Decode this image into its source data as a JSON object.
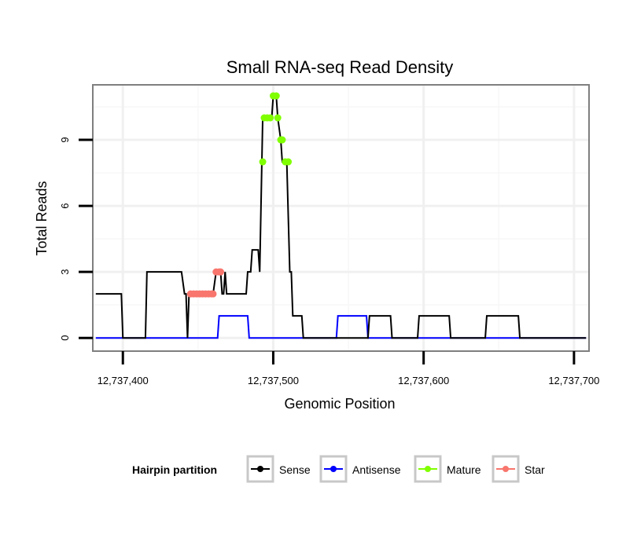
{
  "chart_data": {
    "type": "line",
    "title": "Small RNA-seq Read Density",
    "xlabel": "Genomic Position",
    "ylabel": "Total Reads",
    "xlim": [
      12737380,
      12737710
    ],
    "ylim": [
      -0.6,
      11.5
    ],
    "x_ticks": [
      12737400,
      12737500,
      12737600,
      12737700
    ],
    "x_tick_labels": [
      "12,737,400",
      "12,737,500",
      "12,737,600",
      "12,737,700"
    ],
    "y_ticks": [
      0,
      3,
      6,
      9
    ],
    "y_tick_labels": [
      "0",
      "3",
      "6",
      "9"
    ],
    "grid": true,
    "legend": {
      "title": "Hairpin partition",
      "position": "bottom",
      "entries": [
        "Sense",
        "Antisense",
        "Mature",
        "Star"
      ]
    },
    "series": [
      {
        "name": "Sense",
        "color": "#000000",
        "points": [
          [
            12737382,
            2
          ],
          [
            12737399,
            2
          ],
          [
            12737400,
            0
          ],
          [
            12737415,
            0
          ],
          [
            12737416,
            3
          ],
          [
            12737439,
            3
          ],
          [
            12737441,
            2
          ],
          [
            12737442,
            2
          ],
          [
            12737443,
            0
          ],
          [
            12737444,
            2
          ],
          [
            12737460,
            2
          ],
          [
            12737462,
            3
          ],
          [
            12737465,
            3
          ],
          [
            12737466,
            2
          ],
          [
            12737467,
            2
          ],
          [
            12737468,
            3
          ],
          [
            12737469,
            2
          ],
          [
            12737482,
            2
          ],
          [
            12737483,
            3
          ],
          [
            12737485,
            3
          ],
          [
            12737486,
            4
          ],
          [
            12737490,
            4
          ],
          [
            12737491,
            3
          ],
          [
            12737493,
            10
          ],
          [
            12737499,
            10
          ],
          [
            12737500,
            11
          ],
          [
            12737502,
            11
          ],
          [
            12737503,
            10
          ],
          [
            12737505,
            9
          ],
          [
            12737506,
            8
          ],
          [
            12737509,
            8
          ],
          [
            12737511,
            3
          ],
          [
            12737512,
            3
          ],
          [
            12737513,
            1
          ],
          [
            12737519,
            1
          ],
          [
            12737520,
            0
          ],
          [
            12737563,
            0
          ],
          [
            12737564,
            1
          ],
          [
            12737578,
            1
          ],
          [
            12737579,
            0
          ],
          [
            12737596,
            0
          ],
          [
            12737597,
            1
          ],
          [
            12737617,
            1
          ],
          [
            12737618,
            0
          ],
          [
            12737641,
            0
          ],
          [
            12737642,
            1
          ],
          [
            12737663,
            1
          ],
          [
            12737664,
            0
          ],
          [
            12737708,
            0
          ]
        ]
      },
      {
        "name": "Antisense",
        "color": "#0000ff",
        "points": [
          [
            12737382,
            0
          ],
          [
            12737463,
            0
          ],
          [
            12737464,
            1
          ],
          [
            12737483,
            1
          ],
          [
            12737484,
            0
          ],
          [
            12737542,
            0
          ],
          [
            12737543,
            1
          ],
          [
            12737562,
            1
          ],
          [
            12737563,
            0
          ],
          [
            12737708,
            0
          ]
        ]
      },
      {
        "name": "Mature",
        "color": "#80ff00",
        "points": [
          [
            12737493,
            8
          ],
          [
            12737494,
            10
          ],
          [
            12737496,
            10
          ],
          [
            12737498,
            10
          ],
          [
            12737500,
            11
          ],
          [
            12737502,
            11
          ],
          [
            12737503,
            10
          ],
          [
            12737505,
            9
          ],
          [
            12737506,
            9
          ],
          [
            12737508,
            8
          ],
          [
            12737510,
            8
          ]
        ]
      },
      {
        "name": "Star",
        "color": "#f8766d",
        "points": [
          [
            12737445,
            2
          ],
          [
            12737447,
            2
          ],
          [
            12737449,
            2
          ],
          [
            12737451,
            2
          ],
          [
            12737453,
            2
          ],
          [
            12737455,
            2
          ],
          [
            12737457,
            2
          ],
          [
            12737459,
            2
          ],
          [
            12737460,
            2
          ],
          [
            12737462,
            3
          ],
          [
            12737464,
            3
          ],
          [
            12737465,
            3
          ]
        ]
      }
    ]
  }
}
